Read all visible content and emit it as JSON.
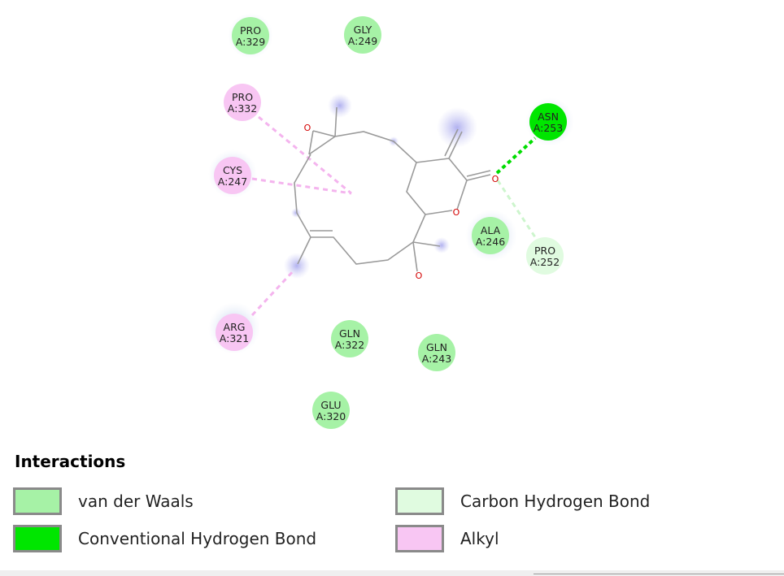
{
  "colors": {
    "van_der_waals": "#a6f2a6",
    "conventional_hbond": "#00e600",
    "carbon_hbond": "#e0fbe0",
    "alkyl": "#f8c6f3",
    "bond": "#9a9a9a",
    "oxygen": "#d40000"
  },
  "residues": [
    {
      "id": "pro329",
      "name": "PRO",
      "chain": "A:329",
      "type": "van_der_waals"
    },
    {
      "id": "gly249",
      "name": "GLY",
      "chain": "A:249",
      "type": "van_der_waals"
    },
    {
      "id": "pro332",
      "name": "PRO",
      "chain": "A:332",
      "type": "alkyl"
    },
    {
      "id": "asn253",
      "name": "ASN",
      "chain": "A:253",
      "type": "conventional_hbond"
    },
    {
      "id": "cys247",
      "name": "CYS",
      "chain": "A:247",
      "type": "alkyl"
    },
    {
      "id": "ala246",
      "name": "ALA",
      "chain": "A:246",
      "type": "van_der_waals"
    },
    {
      "id": "pro252",
      "name": "PRO",
      "chain": "A:252",
      "type": "carbon_hbond"
    },
    {
      "id": "arg321",
      "name": "ARG",
      "chain": "A:321",
      "type": "alkyl"
    },
    {
      "id": "gln322",
      "name": "GLN",
      "chain": "A:322",
      "type": "van_der_waals"
    },
    {
      "id": "gln243",
      "name": "GLN",
      "chain": "A:243",
      "type": "van_der_waals"
    },
    {
      "id": "glu320",
      "name": "GLU",
      "chain": "A:320",
      "type": "van_der_waals"
    }
  ],
  "atom_labels": [
    "O",
    "O",
    "O",
    "O"
  ],
  "legend": {
    "title": "Interactions",
    "items": [
      {
        "label": "van der Waals",
        "type": "van_der_waals"
      },
      {
        "label": "Carbon Hydrogen Bond",
        "type": "carbon_hbond"
      },
      {
        "label": "Conventional Hydrogen Bond",
        "type": "conventional_hbond"
      },
      {
        "label": "Alkyl",
        "type": "alkyl"
      }
    ]
  }
}
